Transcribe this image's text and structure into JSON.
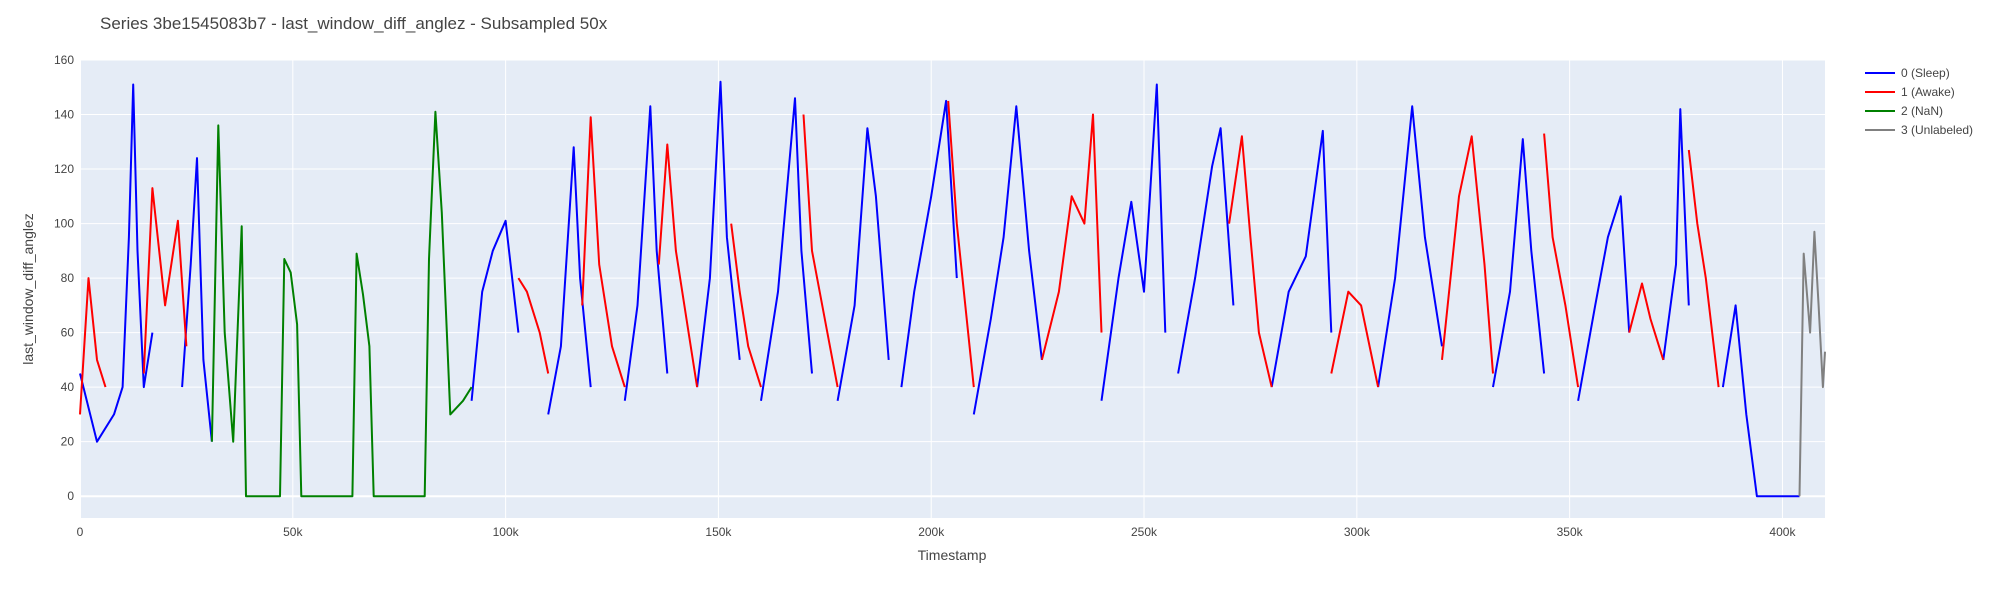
{
  "chart_data": {
    "type": "line",
    "title": "Series 3be1545083b7 - last_window_diff_anglez - Subsampled 50x",
    "xlabel": "Timestamp",
    "ylabel": "last_window_diff_anglez",
    "xlim": [
      0,
      410000
    ],
    "ylim": [
      -8,
      160
    ],
    "x_ticks": [
      0,
      50000,
      100000,
      150000,
      200000,
      250000,
      300000,
      350000,
      400000
    ],
    "x_tick_labels": [
      "0",
      "50k",
      "100k",
      "150k",
      "200k",
      "250k",
      "300k",
      "350k",
      "400k"
    ],
    "y_ticks": [
      0,
      20,
      40,
      60,
      80,
      100,
      120,
      140,
      160
    ],
    "y_tick_labels": [
      "0",
      "20",
      "40",
      "60",
      "80",
      "100",
      "120",
      "140",
      "160"
    ],
    "grid": true,
    "legend_position": "top-right",
    "series": [
      {
        "name": "0 (Sleep)",
        "color": "#0000ff",
        "segments": [
          {
            "x": [
              0,
              4000,
              8000,
              10000,
              11500,
              12500,
              13500,
              15000,
              17000
            ],
            "y": [
              45,
              20,
              30,
              40,
              95,
              151,
              90,
              40,
              60
            ]
          },
          {
            "x": [
              24000,
              26000,
              27500,
              29000,
              31000
            ],
            "y": [
              40,
              85,
              124,
              50,
              20
            ]
          },
          {
            "x": [
              92000,
              94500,
              97000,
              100000,
              103000
            ],
            "y": [
              35,
              75,
              90,
              101,
              60
            ]
          },
          {
            "x": [
              110000,
              113000,
              116000,
              117500,
              120000
            ],
            "y": [
              30,
              55,
              128,
              80,
              40
            ]
          },
          {
            "x": [
              128000,
              131000,
              134000,
              135500,
              138000
            ],
            "y": [
              35,
              70,
              143,
              90,
              45
            ]
          },
          {
            "x": [
              145000,
              148000,
              150500,
              152000,
              155000
            ],
            "y": [
              40,
              80,
              152,
              95,
              50
            ]
          },
          {
            "x": [
              160000,
              164000,
              168000,
              169500,
              172000
            ],
            "y": [
              35,
              75,
              146,
              90,
              45
            ]
          },
          {
            "x": [
              178000,
              182000,
              185000,
              187000,
              190000
            ],
            "y": [
              35,
              70,
              135,
              110,
              50
            ]
          },
          {
            "x": [
              193000,
              196000,
              200000,
              203500,
              206000
            ],
            "y": [
              40,
              75,
              110,
              145,
              80
            ]
          },
          {
            "x": [
              210000,
              214000,
              217000,
              220000,
              223000,
              226000
            ],
            "y": [
              30,
              65,
              95,
              143,
              90,
              50
            ]
          },
          {
            "x": [
              240000,
              244000,
              247000,
              250000,
              253000,
              255000
            ],
            "y": [
              35,
              80,
              108,
              75,
              151,
              60
            ]
          },
          {
            "x": [
              258000,
              262000,
              266000,
              268000,
              271000
            ],
            "y": [
              45,
              80,
              121,
              135,
              70
            ]
          },
          {
            "x": [
              280000,
              284000,
              288000,
              292000,
              294000
            ],
            "y": [
              40,
              75,
              88,
              134,
              60
            ]
          },
          {
            "x": [
              305000,
              309000,
              313000,
              316000,
              320000
            ],
            "y": [
              40,
              80,
              143,
              95,
              55
            ]
          },
          {
            "x": [
              332000,
              336000,
              339000,
              341000,
              344000
            ],
            "y": [
              40,
              75,
              131,
              90,
              45
            ]
          },
          {
            "x": [
              352000,
              356000,
              359000,
              362000,
              364000
            ],
            "y": [
              35,
              70,
              95,
              110,
              60
            ]
          },
          {
            "x": [
              372000,
              375000,
              376000,
              378000
            ],
            "y": [
              50,
              85,
              142,
              70
            ]
          },
          {
            "x": [
              386000,
              389000,
              391500,
              394000,
              404000
            ],
            "y": [
              40,
              70,
              30,
              0,
              0
            ]
          }
        ]
      },
      {
        "name": "1 (Awake)",
        "color": "#ff0000",
        "segments": [
          {
            "x": [
              0,
              2000,
              4000,
              6000
            ],
            "y": [
              30,
              80,
              50,
              40
            ]
          },
          {
            "x": [
              15000,
              17000,
              20000,
              23000,
              25000
            ],
            "y": [
              45,
              113,
              70,
              101,
              55
            ]
          },
          {
            "x": [
              103000,
              105000,
              108000,
              110000
            ],
            "y": [
              80,
              75,
              60,
              45
            ]
          },
          {
            "x": [
              118000,
              120000,
              122000,
              125000,
              128000
            ],
            "y": [
              70,
              139,
              85,
              55,
              40
            ]
          },
          {
            "x": [
              136000,
              138000,
              140000,
              143000,
              145000
            ],
            "y": [
              85,
              129,
              90,
              60,
              40
            ]
          },
          {
            "x": [
              153000,
              155000,
              157000,
              160000
            ],
            "y": [
              100,
              75,
              55,
              40
            ]
          },
          {
            "x": [
              170000,
              172000,
              175000,
              178000
            ],
            "y": [
              140,
              90,
              65,
              40
            ]
          },
          {
            "x": [
              204000,
              206000,
              208000,
              210000
            ],
            "y": [
              145,
              100,
              70,
              40
            ]
          },
          {
            "x": [
              226000,
              230000,
              233000,
              236000,
              238000,
              240000
            ],
            "y": [
              50,
              75,
              110,
              100,
              140,
              60
            ]
          },
          {
            "x": [
              270000,
              273000,
              275000,
              277000,
              280000
            ],
            "y": [
              100,
              132,
              95,
              60,
              40
            ]
          },
          {
            "x": [
              294000,
              298000,
              301000,
              305000
            ],
            "y": [
              45,
              75,
              70,
              40
            ]
          },
          {
            "x": [
              320000,
              324000,
              327000,
              330000,
              332000
            ],
            "y": [
              50,
              110,
              132,
              85,
              45
            ]
          },
          {
            "x": [
              344000,
              346000,
              349000,
              352000
            ],
            "y": [
              133,
              95,
              70,
              40
            ]
          },
          {
            "x": [
              364000,
              367000,
              369000,
              372000
            ],
            "y": [
              60,
              78,
              65,
              50
            ]
          },
          {
            "x": [
              378000,
              380000,
              382000,
              385000
            ],
            "y": [
              127,
              100,
              80,
              40
            ]
          }
        ]
      },
      {
        "name": "2 (NaN)",
        "color": "#008000",
        "segments": [
          {
            "x": [
              31000,
              32500,
              34000,
              36000,
              38000,
              39000,
              41000,
              47000,
              48000,
              49500,
              51000,
              52000,
              64000,
              65000,
              66500,
              68000,
              69000,
              81000,
              82000,
              83500,
              85000,
              87000,
              90000,
              92000
            ],
            "y": [
              20,
              136,
              60,
              20,
              99,
              0,
              0,
              0,
              87,
              82,
              63,
              0,
              0,
              89,
              74,
              55,
              0,
              0,
              87,
              141,
              104,
              30,
              35,
              40
            ]
          }
        ]
      },
      {
        "name": "3 (Unlabeled)",
        "color": "#808080",
        "segments": [
          {
            "x": [
              404000,
              405000,
              406500,
              407500,
              408500,
              409500,
              410000
            ],
            "y": [
              0,
              89,
              60,
              97,
              70,
              40,
              53
            ]
          }
        ]
      }
    ]
  }
}
